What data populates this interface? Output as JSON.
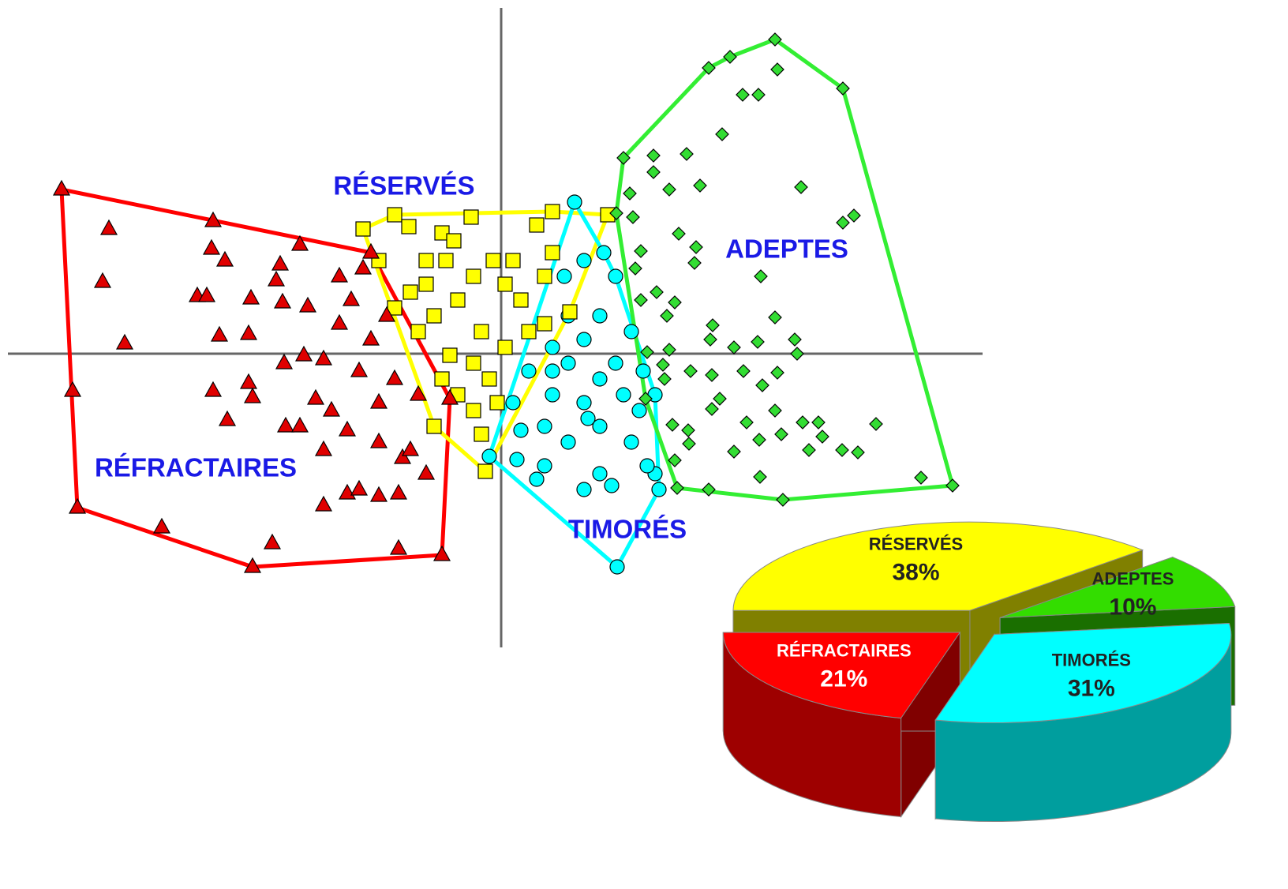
{
  "chart_data": [
    {
      "type": "scatter",
      "xlim": [
        -625,
        610
      ],
      "ylim": [
        -372,
        438
      ],
      "series": [
        {
          "name": "RÉFRACTAIRES",
          "color": "#e00000",
          "hull_color": "#ff0000",
          "marker": "triangle",
          "x": [
            -557,
            -165,
            -65,
            -75,
            -315,
            -537,
            -543,
            -497,
            -505,
            -477,
            -365,
            -367,
            -350,
            -385,
            -373,
            -317,
            -357,
            -320,
            -280,
            -285,
            -255,
            -277,
            -245,
            -275,
            -250,
            -365,
            -320,
            -315,
            -347,
            -273,
            -255,
            -225,
            -205,
            -190,
            -175,
            -235,
            -215,
            -195,
            -225,
            -195,
            -225,
            -180,
            -155,
            -130,
            -125,
            -95,
            -115,
            -155,
            -180,
            -165,
            -145,
            -135,
            -105,
            -430,
            -290,
            -130,
            -205,
            -155
          ],
          "y": [
            208,
            128,
            -57,
            -255,
            -270,
            -195,
            -47,
            158,
            91,
            13,
            168,
            133,
            118,
            73,
            73,
            70,
            23,
            25,
            113,
            93,
            138,
            65,
            60,
            -12,
            -2,
            -47,
            -37,
            -55,
            -84,
            -92,
            -92,
            -7,
            98,
            68,
            108,
            -57,
            -72,
            -97,
            -122,
            -177,
            -192,
            -172,
            -180,
            -177,
            -132,
            -152,
            -122,
            -112,
            -22,
            18,
            48,
            -32,
            -52,
            -220,
            -240,
            -247,
            38,
            -62
          ]
        },
        {
          "name": "RÉSERVÉS",
          "color": "#ffff00",
          "hull_color": "#ffff00",
          "marker": "square",
          "x": [
            -175,
            -135,
            -117,
            -38,
            -75,
            -60,
            -70,
            -10,
            45,
            65,
            135,
            87,
            55,
            -25,
            -55,
            -85,
            -105,
            -65,
            -35,
            5,
            25,
            55,
            5,
            -35,
            -115,
            -135,
            -95,
            -15,
            -55,
            -35,
            -20,
            -85,
            -25,
            -5,
            -75,
            35,
            65,
            15,
            -95,
            -155
          ],
          "y": [
            158,
            176,
            161,
            173,
            153,
            143,
            118,
            118,
            163,
            180,
            176,
            53,
            38,
            28,
            68,
            48,
            28,
            -2,
            -12,
            8,
            68,
            98,
            88,
            98,
            78,
            58,
            88,
            -32,
            -52,
            -72,
            -149,
            -92,
            -102,
            -62,
            -32,
            28,
            128,
            118,
            118,
            118
          ]
        },
        {
          "name": "TIMORÉS",
          "color": "#00ffff",
          "hull_color": "#00ffff",
          "marker": "circle",
          "x": [
            93,
            105,
            130,
            145,
            165,
            180,
            195,
            200,
            147,
            45,
            -15,
            20,
            55,
            105,
            125,
            140,
            85,
            55,
            25,
            15,
            65,
            105,
            125,
            145,
            85,
            65,
            105,
            125,
            85,
            65,
            175,
            165,
            110,
            35,
            195,
            155,
            185,
            125,
            80
          ],
          "y": [
            192,
            118,
            128,
            98,
            28,
            -22,
            -152,
            -172,
            -270,
            -159,
            -130,
            -134,
            -142,
            -172,
            -152,
            -167,
            -112,
            -92,
            -97,
            -62,
            -52,
            -62,
            -32,
            -12,
            -12,
            8,
            18,
            48,
            48,
            -22,
            -72,
            -112,
            -82,
            -22,
            -52,
            -52,
            -142,
            -92,
            98
          ]
        },
        {
          "name": "ADEPTES",
          "color": "#33dd33",
          "hull_color": "#33ee33",
          "marker": "diamond",
          "x": [
            347,
            290,
            263,
            350,
            433,
            306,
            326,
            280,
            155,
            193,
            235,
            193,
            213,
            252,
            380,
            163,
            146,
            167,
            433,
            447,
            225,
            247,
            177,
            245,
            329,
            170,
            197,
            220,
            177,
            210,
            347,
            268,
            265,
            372,
            325,
            295,
            185,
            213,
            375,
            205,
            240,
            267,
            307,
            350,
            207,
            331,
            277,
            183,
            267,
            311,
            347,
            217,
            237,
            382,
            402,
            475,
            327,
            355,
            407,
            238,
            295,
            390,
            432,
            452,
            220,
            328,
            532,
            572,
            223,
            263,
            357
          ],
          "y": [
            398,
            376,
            362,
            360,
            336,
            328,
            328,
            278,
            248,
            251,
            253,
            230,
            208,
            213,
            211,
            203,
            178,
            173,
            166,
            175,
            152,
            135,
            130,
            115,
            98,
            108,
            78,
            65,
            68,
            48,
            46,
            36,
            18,
            18,
            15,
            8,
            2,
            5,
            0,
            -14,
            -22,
            -27,
            -22,
            -24,
            -32,
            -40,
            -57,
            -57,
            -70,
            -87,
            -72,
            -90,
            -97,
            -87,
            -87,
            -89,
            -109,
            -102,
            -105,
            -114,
            -124,
            -122,
            -122,
            -125,
            -135,
            -156,
            -157,
            -167,
            -170,
            -172,
            -185
          ]
        }
      ]
    },
    {
      "type": "pie",
      "categories": [
        "RÉSERVÉS",
        "ADEPTES",
        "TIMORÉS",
        "RÉFRACTAIRES"
      ],
      "values": [
        38,
        10,
        31,
        21
      ],
      "value_labels": [
        "38%",
        "10%",
        "31%",
        "21%"
      ],
      "colors": [
        "#ffff00",
        "#33dd00",
        "#00ffff",
        "#ff0000"
      ]
    }
  ]
}
